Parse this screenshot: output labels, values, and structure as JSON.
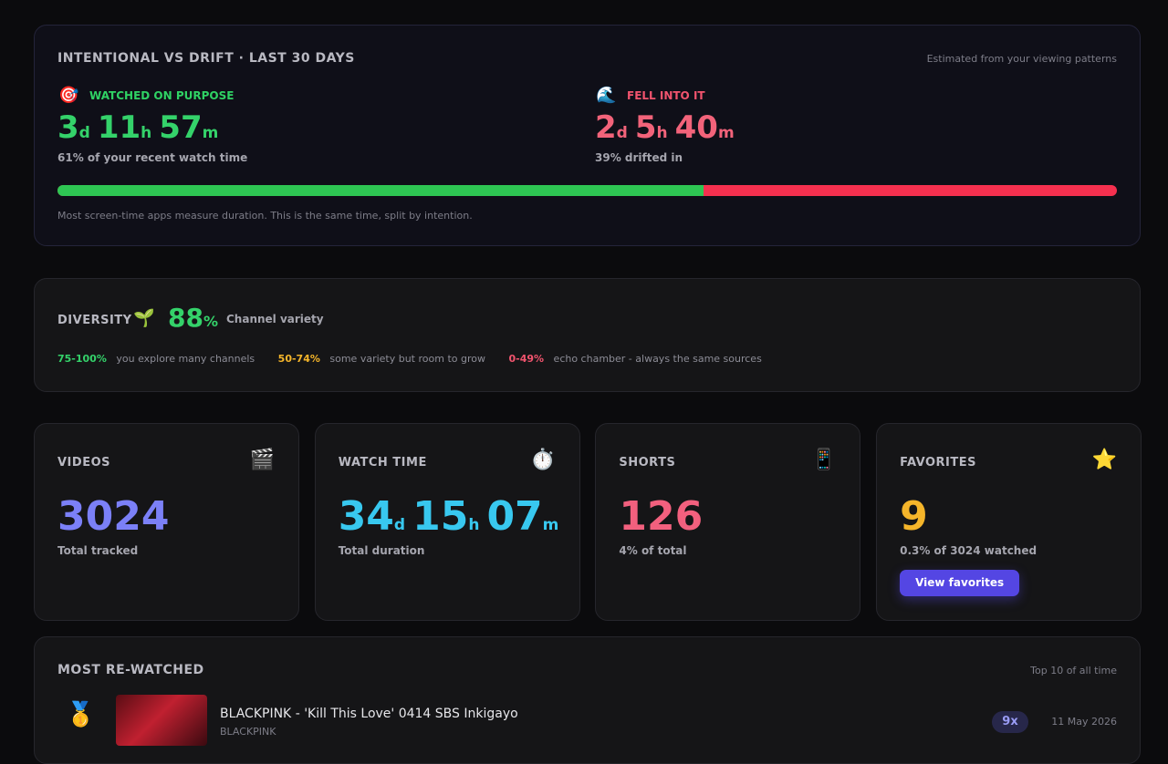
{
  "intention": {
    "title": "INTENTIONAL VS DRIFT · LAST 30 DAYS",
    "note": "Estimated from your viewing patterns",
    "purpose": {
      "icon": "🎯",
      "label": "WATCHED ON PURPOSE",
      "time": [
        {
          "num": "3",
          "unit": "d"
        },
        {
          "num": "11",
          "unit": "h"
        },
        {
          "num": "57",
          "unit": "m"
        }
      ],
      "sub": "61% of your recent watch time",
      "share": 61
    },
    "drift": {
      "icon": "🌊",
      "label": "FELL INTO IT",
      "time": [
        {
          "num": "2",
          "unit": "d"
        },
        {
          "num": "5",
          "unit": "h"
        },
        {
          "num": "40",
          "unit": "m"
        }
      ],
      "sub": "39% drifted in"
    },
    "footer": "Most screen-time apps measure duration. This is the same time, split by intention."
  },
  "diversity": {
    "label": "DIVERSITY",
    "icon": "🌱",
    "value": "88",
    "unit": "%",
    "desc": "Channel variety",
    "legend": [
      {
        "range": "75-100%",
        "text": "you explore many channels"
      },
      {
        "range": "50-74%",
        "text": "some variety but room to grow"
      },
      {
        "range": "0-49%",
        "text": "echo chamber - always the same sources"
      }
    ]
  },
  "stats": [
    {
      "title": "VIDEOS",
      "icon": "🎬",
      "value": [
        {
          "num": "3024"
        }
      ],
      "sub": "Total tracked"
    },
    {
      "title": "WATCH TIME",
      "icon": "⏱️",
      "value": [
        {
          "num": "34",
          "unit": "d"
        },
        {
          "num": "15",
          "unit": "h"
        },
        {
          "num": "07",
          "unit": "m"
        }
      ],
      "sub": "Total duration"
    },
    {
      "title": "SHORTS",
      "icon": "📱",
      "value": [
        {
          "num": "126"
        }
      ],
      "sub": "4% of total"
    },
    {
      "title": "FAVORITES",
      "icon": "⭐",
      "value": [
        {
          "num": "9"
        }
      ],
      "sub": "0.3% of 3024 watched",
      "button": "View favorites"
    }
  ],
  "rewatched": {
    "title": "MOST RE-WATCHED",
    "note": "Top 10 of all time",
    "items": [
      {
        "rank": "🥇",
        "title": "BLACKPINK - 'Kill This Love' 0414 SBS Inkigayo",
        "channel": "BLACKPINK",
        "count": "9x",
        "date": "11 May 2026"
      }
    ]
  }
}
